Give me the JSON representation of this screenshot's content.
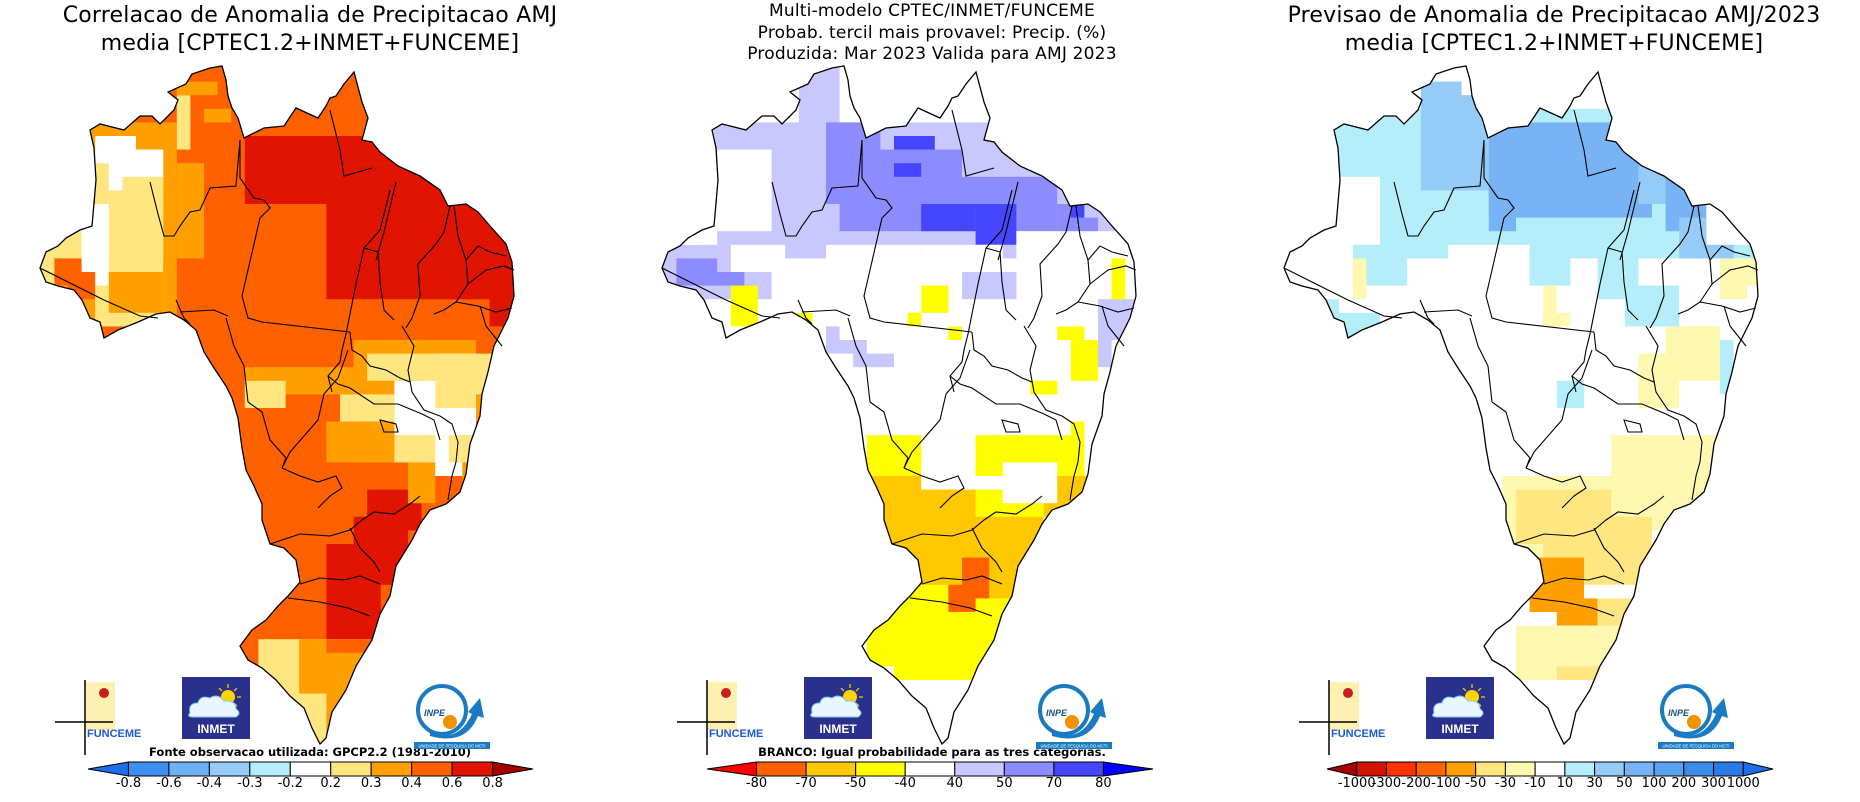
{
  "panels": [
    {
      "id": "correlation",
      "title_lines": [
        "Correlacao de Anomalia de Precipitacao AMJ",
        "media [CPTEC1.2+INMET+FUNCEME]"
      ],
      "note": "Fonte observacao utilizada: GPCP2.2 (1981-2010)",
      "legend": {
        "left_arrow_color": "#1e6ee8",
        "right_arrow_color": "#a50000",
        "colors": [
          "#3c8ef0",
          "#6fb0f5",
          "#95cbf7",
          "#b3eefa",
          "#ffffff",
          "#ffe680",
          "#ffa000",
          "#ff6000",
          "#e01400"
        ],
        "labels": [
          "-0.8",
          "-0.6",
          "-0.4",
          "-0.3",
          "-0.2",
          "0.2",
          "0.3",
          "0.4",
          "0.6",
          "0.8"
        ]
      }
    },
    {
      "id": "tercile-probability",
      "title_lines": [
        "Multi-modelo CPTEC/INMET/FUNCEME",
        "Probab. tercil mais provavel: Precip. (%)",
        "Produzida: Mar 2023  Valida para AMJ 2023"
      ],
      "note": "BRANCO: Igual probabilidade para as tres categorias.",
      "legend": {
        "left_arrow_color": "#ff0000",
        "right_arrow_color": "#0000ff",
        "colors": [
          "#ff6000",
          "#ffc800",
          "#ffff00",
          "#ffffff",
          "#c8c8ff",
          "#8c8cff",
          "#4646ff"
        ],
        "labels": [
          "-80",
          "-70",
          "-50",
          "-40",
          "40",
          "50",
          "70",
          "80"
        ]
      }
    },
    {
      "id": "anomaly-forecast",
      "title_lines": [
        "Previsao de Anomalia de Precipitacao AMJ/2023",
        "media [CPTEC1.2+INMET+FUNCEME]"
      ],
      "note": "",
      "legend": {
        "left_arrow_color": "#a50000",
        "right_arrow_color": "#1e6ee8",
        "colors": [
          "#d21400",
          "#ff3200",
          "#ff6400",
          "#ffa000",
          "#ffe680",
          "#fff8b0",
          "#ffffff",
          "#b3eefa",
          "#95cbf7",
          "#78b4f5",
          "#5aa0f0",
          "#3c8cea",
          "#2a7ae6"
        ],
        "labels": [
          "-1000",
          "-300",
          "-200",
          "-100",
          "-50",
          "-30",
          "-10",
          "10",
          "30",
          "50",
          "100",
          "200",
          "300",
          "1000"
        ]
      }
    }
  ],
  "logos": {
    "funceme": "FUNCEME",
    "inmet": "INMET",
    "inpe": "INPE",
    "inpe_tagline": "UNIDADE DE PESQUISA DO MCTI"
  },
  "map_region": "Brazil",
  "map_colors": {
    "correlation": {
      "c1": "#ffe680",
      "c2": "#ffa000",
      "c3": "#ff6000",
      "c4": "#e01400"
    },
    "tercile": {
      "l1": "#c8c8ff",
      "l2": "#8c8cff",
      "l3": "#4646ff",
      "y1": "#ffff00",
      "y2": "#ffc800",
      "y3": "#ff6000"
    },
    "anomaly": {
      "b1": "#b3eefa",
      "b2": "#95cbf7",
      "b3": "#78b4f5",
      "y1": "#fff8b0",
      "y2": "#ffe680",
      "o1": "#ffa000"
    }
  },
  "outline_color": "#000000"
}
